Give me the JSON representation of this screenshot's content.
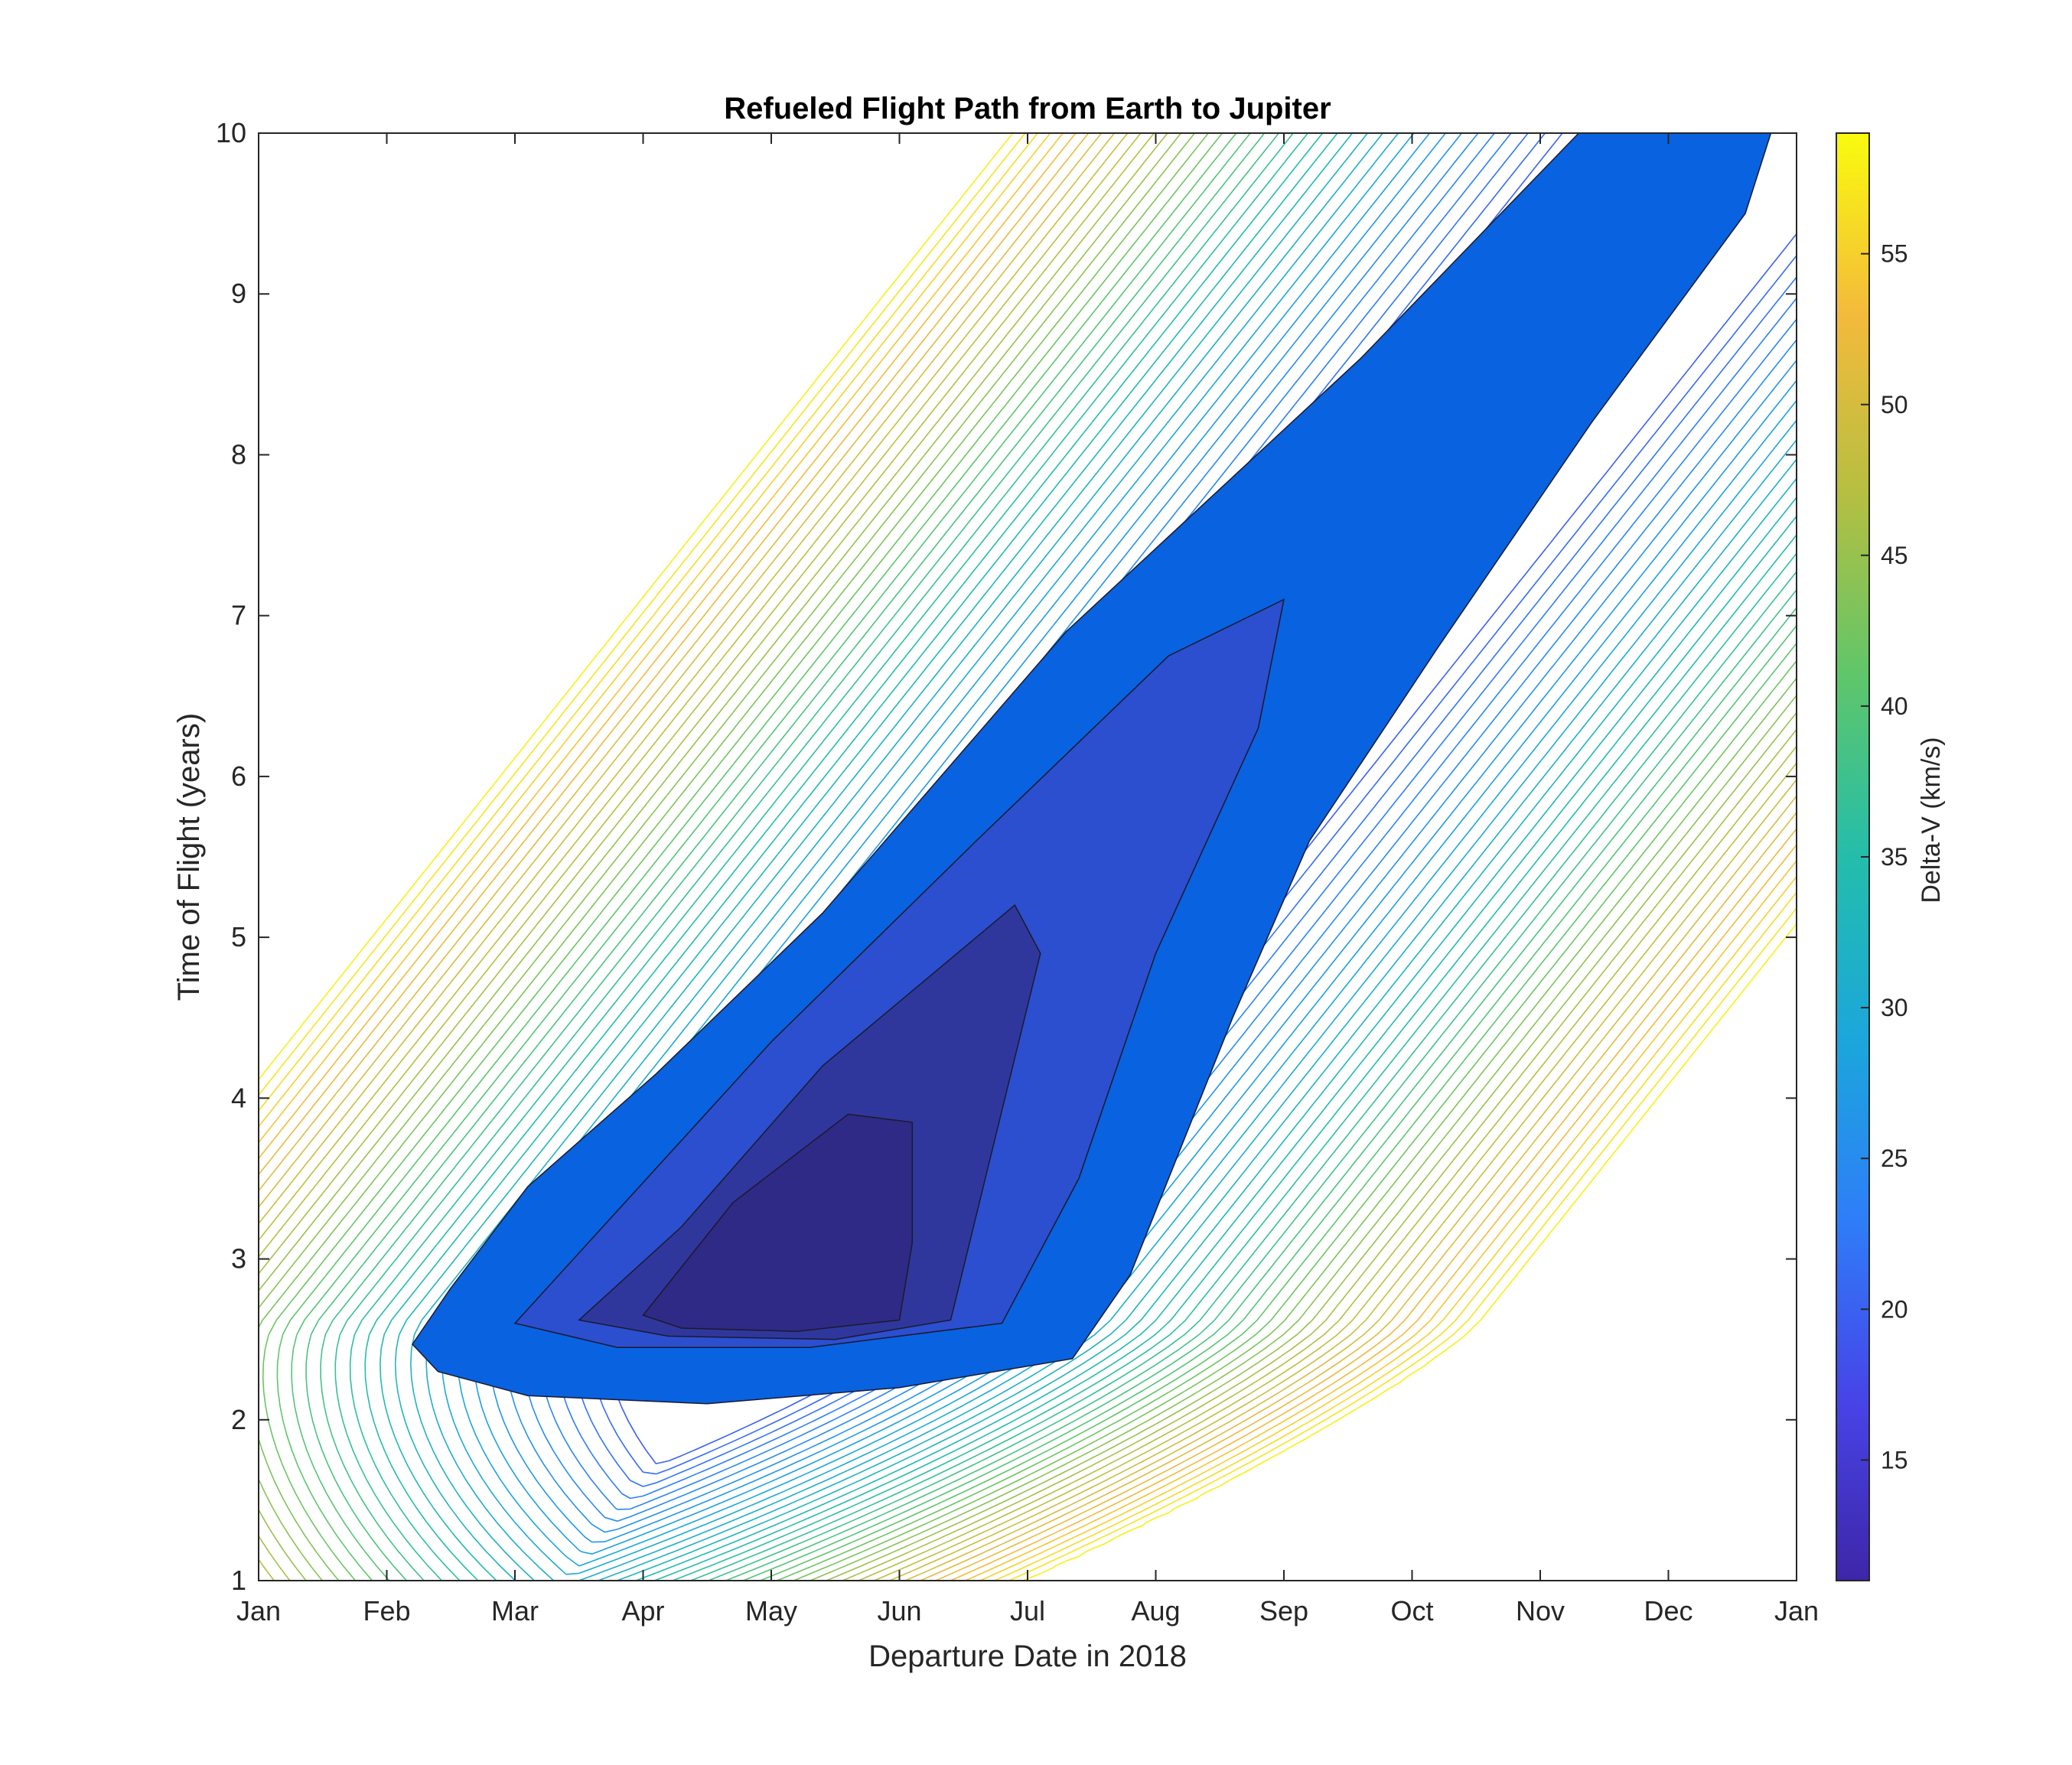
{
  "chart_data": {
    "type": "contour",
    "title": "Refueled Flight Path from Earth to Jupiter",
    "xlabel": "Departure Date in 2018",
    "ylabel": "Time of Flight (years)",
    "colorbar_label": "Delta-V (km/s)",
    "x_tick_labels": [
      "Jan",
      "Feb",
      "Mar",
      "Apr",
      "May",
      "Jun",
      "Jul",
      "Aug",
      "Sep",
      "Oct",
      "Nov",
      "Dec",
      "Jan"
    ],
    "y_ticks": [
      1,
      2,
      3,
      4,
      5,
      6,
      7,
      8,
      9,
      10
    ],
    "ylim": [
      1,
      10
    ],
    "xlim_months": [
      0,
      12
    ],
    "colorbar_ticks": [
      15,
      20,
      25,
      30,
      35,
      40,
      45,
      50,
      55
    ],
    "colorbar_range": [
      11,
      59
    ],
    "colormap": [
      "#3e26a8",
      "#4744e8",
      "#2e7ef8",
      "#1ba7db",
      "#24bdab",
      "#5fc66a",
      "#b5bf41",
      "#f4ba3c",
      "#f9fb0e"
    ],
    "filled_levels": [
      {
        "max_delta_v": 20,
        "color": "#0962e0"
      },
      {
        "max_delta_v": 17.5,
        "color": "#2b4fcf"
      },
      {
        "max_delta_v": 15,
        "color": "#30379c"
      },
      {
        "max_delta_v": 12.5,
        "color": "#2f2a85"
      }
    ],
    "minimum": {
      "departure_month": 4.3,
      "time_of_flight": 2.9
    },
    "grid": false,
    "legend": "colorbar-right"
  }
}
